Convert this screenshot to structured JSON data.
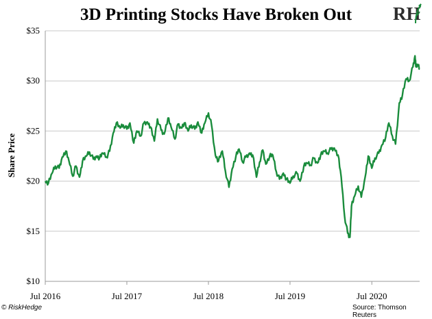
{
  "title": "3D Printing Stocks Have Broken Out",
  "logo": {
    "text": "RH",
    "icon": "riskhedge-logo-icon"
  },
  "footer": {
    "credit": "© RiskHedge",
    "source": "Source: Thomson Reuters"
  },
  "colors": {
    "line": "#1a8c3c",
    "grid": "#c8c8c8",
    "axis": "#9a9a9a"
  },
  "chart_data": {
    "type": "line",
    "title": "3D Printing Stocks Have Broken Out",
    "xlabel": "",
    "ylabel": "Share Price",
    "ylim": [
      10,
      35
    ],
    "yticks": [
      10,
      15,
      20,
      25,
      30,
      35
    ],
    "yticklabels": [
      "$10",
      "$15",
      "$20",
      "$25",
      "$30",
      "$35"
    ],
    "xlim": [
      "2016-07-01",
      "2021-01-31"
    ],
    "xticks": [
      "2016-07-01",
      "2017-07-01",
      "2018-07-01",
      "2019-07-01",
      "2020-07-01"
    ],
    "xticklabels": [
      "Jul 2016",
      "Jul 2017",
      "Jul 2018",
      "Jul 2019",
      "Jul 2020"
    ],
    "grid": "horizontal",
    "series": [
      {
        "values_x": [
          "2016-07-01",
          "2016-07-15",
          "2016-08-01",
          "2016-08-15",
          "2016-09-01",
          "2016-09-15",
          "2016-10-01",
          "2016-10-15",
          "2016-11-01",
          "2016-11-15",
          "2016-12-01",
          "2016-12-15",
          "2017-01-01",
          "2017-01-15",
          "2017-02-01",
          "2017-02-15",
          "2017-03-01",
          "2017-03-15",
          "2017-04-01",
          "2017-04-15",
          "2017-05-01",
          "2017-05-15",
          "2017-06-01",
          "2017-06-15",
          "2017-07-01",
          "2017-07-15",
          "2017-08-01",
          "2017-08-15",
          "2017-09-01",
          "2017-09-15",
          "2017-10-01",
          "2017-10-15",
          "2017-11-01",
          "2017-11-15",
          "2017-12-01",
          "2017-12-15",
          "2018-01-01",
          "2018-01-15",
          "2018-02-01",
          "2018-02-15",
          "2018-03-01",
          "2018-03-15",
          "2018-04-01",
          "2018-04-15",
          "2018-05-01",
          "2018-05-15",
          "2018-06-01",
          "2018-06-15",
          "2018-07-01",
          "2018-07-15",
          "2018-08-01",
          "2018-08-15",
          "2018-09-01",
          "2018-09-15",
          "2018-10-01",
          "2018-10-15",
          "2018-11-01",
          "2018-11-15",
          "2018-12-01",
          "2018-12-15",
          "2019-01-01",
          "2019-01-15",
          "2019-02-01",
          "2019-02-15",
          "2019-03-01",
          "2019-03-15",
          "2019-04-01",
          "2019-04-15",
          "2019-05-01",
          "2019-05-15",
          "2019-06-01",
          "2019-06-15",
          "2019-07-01",
          "2019-07-15",
          "2019-08-01",
          "2019-08-15",
          "2019-09-01",
          "2019-09-15",
          "2019-10-01",
          "2019-10-15",
          "2019-11-01",
          "2019-11-15",
          "2019-12-01",
          "2019-12-15",
          "2020-01-01",
          "2020-01-15",
          "2020-02-01",
          "2020-02-15",
          "2020-03-01",
          "2020-03-15",
          "2020-03-25",
          "2020-04-01",
          "2020-04-15",
          "2020-05-01",
          "2020-05-15",
          "2020-06-01",
          "2020-06-15",
          "2020-07-01",
          "2020-07-15",
          "2020-08-01",
          "2020-08-15",
          "2020-09-01",
          "2020-09-15",
          "2020-10-01",
          "2020-10-15",
          "2020-11-01",
          "2020-11-15",
          "2020-12-01",
          "2020-12-15",
          "2021-01-01",
          "2021-01-10",
          "2021-01-15",
          "2021-01-22",
          "2021-01-31"
        ],
        "values": [
          20.0,
          19.8,
          20.8,
          21.5,
          21.3,
          22.4,
          23.0,
          22.0,
          20.5,
          21.5,
          20.4,
          22.0,
          22.5,
          22.9,
          22.2,
          22.5,
          22.3,
          22.8,
          22.4,
          23.0,
          24.8,
          25.8,
          25.3,
          25.6,
          25.2,
          25.8,
          23.8,
          25.0,
          24.5,
          25.8,
          25.9,
          25.4,
          24.0,
          26.2,
          25.1,
          24.7,
          26.3,
          25.4,
          24.2,
          25.7,
          25.3,
          25.8,
          25.0,
          25.6,
          25.2,
          25.9,
          24.8,
          25.8,
          26.8,
          25.6,
          22.6,
          22.0,
          23.0,
          21.0,
          19.4,
          21.2,
          22.5,
          23.2,
          21.9,
          22.4,
          22.8,
          22.6,
          20.4,
          21.9,
          23.1,
          21.7,
          22.5,
          22.6,
          20.9,
          20.2,
          20.8,
          20.2,
          19.8,
          20.5,
          20.8,
          20.0,
          21.5,
          21.8,
          21.6,
          22.3,
          21.8,
          22.6,
          23.0,
          22.8,
          23.2,
          23.3,
          22.6,
          20.4,
          16.5,
          14.8,
          14.4,
          17.5,
          18.5,
          19.5,
          18.4,
          20.4,
          22.5,
          21.3,
          22.3,
          22.8,
          23.6,
          24.4,
          25.8,
          24.5,
          23.7,
          27.8,
          28.6,
          30.2,
          30.0,
          31.4,
          32.5,
          31.4,
          31.6,
          31.2
        ]
      }
    ]
  }
}
